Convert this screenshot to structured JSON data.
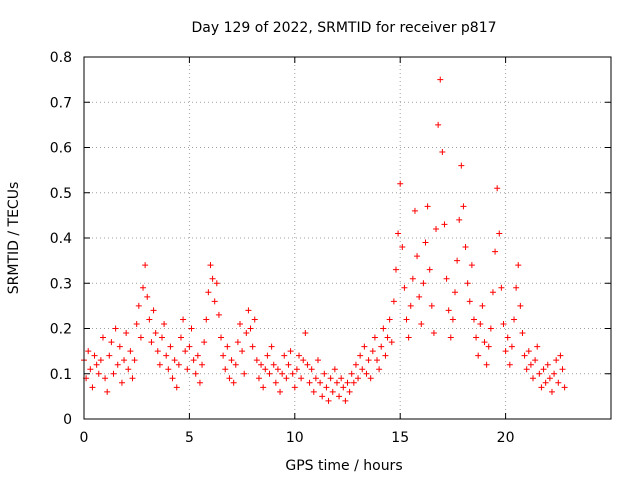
{
  "chart_data": {
    "type": "scatter",
    "title": "Day 129 of 2022, SRMTID for receiver p817",
    "xlabel": "GPS time / hours",
    "ylabel": "SRMTID / TECUs",
    "xlim": [
      0,
      25
    ],
    "ylim": [
      0,
      0.8
    ],
    "grid": true,
    "legend": "none",
    "marker": "plus",
    "color": "#ff0000",
    "x_ticks": [
      {
        "value": 0,
        "label": "0"
      },
      {
        "value": 5,
        "label": "5"
      },
      {
        "value": 10,
        "label": "10"
      },
      {
        "value": 15,
        "label": "15"
      },
      {
        "value": 20,
        "label": "20"
      }
    ],
    "y_ticks": [
      {
        "value": 0,
        "label": "0"
      },
      {
        "value": 0.1,
        "label": "0.1"
      },
      {
        "value": 0.2,
        "label": "0.2"
      },
      {
        "value": 0.3,
        "label": "0.3"
      },
      {
        "value": 0.4,
        "label": "0.4"
      },
      {
        "value": 0.5,
        "label": "0.5"
      },
      {
        "value": 0.6,
        "label": "0.6"
      },
      {
        "value": 0.7,
        "label": "0.7"
      },
      {
        "value": 0.8,
        "label": "0.8"
      }
    ],
    "series": [
      {
        "name": "SRMTID p817",
        "points": [
          [
            0.0,
            0.13
          ],
          [
            0.1,
            0.09
          ],
          [
            0.2,
            0.15
          ],
          [
            0.3,
            0.11
          ],
          [
            0.4,
            0.07
          ],
          [
            0.5,
            0.14
          ],
          [
            0.6,
            0.12
          ],
          [
            0.7,
            0.1
          ],
          [
            0.8,
            0.13
          ],
          [
            0.9,
            0.18
          ],
          [
            1.0,
            0.09
          ],
          [
            1.1,
            0.06
          ],
          [
            1.2,
            0.14
          ],
          [
            1.3,
            0.17
          ],
          [
            1.4,
            0.1
          ],
          [
            1.5,
            0.2
          ],
          [
            1.6,
            0.12
          ],
          [
            1.7,
            0.16
          ],
          [
            1.8,
            0.08
          ],
          [
            1.9,
            0.13
          ],
          [
            2.0,
            0.19
          ],
          [
            2.1,
            0.11
          ],
          [
            2.2,
            0.15
          ],
          [
            2.3,
            0.09
          ],
          [
            2.4,
            0.13
          ],
          [
            2.5,
            0.21
          ],
          [
            2.6,
            0.25
          ],
          [
            2.7,
            0.18
          ],
          [
            2.8,
            0.29
          ],
          [
            2.9,
            0.34
          ],
          [
            3.0,
            0.27
          ],
          [
            3.1,
            0.22
          ],
          [
            3.2,
            0.17
          ],
          [
            3.3,
            0.24
          ],
          [
            3.4,
            0.19
          ],
          [
            3.5,
            0.15
          ],
          [
            3.6,
            0.12
          ],
          [
            3.7,
            0.18
          ],
          [
            3.8,
            0.21
          ],
          [
            3.9,
            0.14
          ],
          [
            4.0,
            0.11
          ],
          [
            4.1,
            0.16
          ],
          [
            4.2,
            0.09
          ],
          [
            4.3,
            0.13
          ],
          [
            4.4,
            0.07
          ],
          [
            4.5,
            0.12
          ],
          [
            4.6,
            0.18
          ],
          [
            4.7,
            0.22
          ],
          [
            4.8,
            0.15
          ],
          [
            4.9,
            0.11
          ],
          [
            5.0,
            0.16
          ],
          [
            5.1,
            0.2
          ],
          [
            5.2,
            0.13
          ],
          [
            5.3,
            0.1
          ],
          [
            5.4,
            0.14
          ],
          [
            5.5,
            0.08
          ],
          [
            5.6,
            0.12
          ],
          [
            5.7,
            0.17
          ],
          [
            5.8,
            0.22
          ],
          [
            5.9,
            0.28
          ],
          [
            6.0,
            0.34
          ],
          [
            6.1,
            0.31
          ],
          [
            6.2,
            0.26
          ],
          [
            6.3,
            0.3
          ],
          [
            6.4,
            0.23
          ],
          [
            6.5,
            0.18
          ],
          [
            6.6,
            0.14
          ],
          [
            6.7,
            0.11
          ],
          [
            6.8,
            0.16
          ],
          [
            6.9,
            0.09
          ],
          [
            7.0,
            0.13
          ],
          [
            7.1,
            0.08
          ],
          [
            7.2,
            0.12
          ],
          [
            7.3,
            0.17
          ],
          [
            7.4,
            0.21
          ],
          [
            7.5,
            0.15
          ],
          [
            7.6,
            0.1
          ],
          [
            7.7,
            0.19
          ],
          [
            7.8,
            0.24
          ],
          [
            7.9,
            0.2
          ],
          [
            8.0,
            0.16
          ],
          [
            8.1,
            0.22
          ],
          [
            8.2,
            0.13
          ],
          [
            8.3,
            0.09
          ],
          [
            8.4,
            0.12
          ],
          [
            8.5,
            0.07
          ],
          [
            8.6,
            0.11
          ],
          [
            8.7,
            0.14
          ],
          [
            8.8,
            0.1
          ],
          [
            8.9,
            0.16
          ],
          [
            9.0,
            0.12
          ],
          [
            9.1,
            0.08
          ],
          [
            9.2,
            0.11
          ],
          [
            9.3,
            0.06
          ],
          [
            9.4,
            0.1
          ],
          [
            9.5,
            0.14
          ],
          [
            9.6,
            0.09
          ],
          [
            9.7,
            0.12
          ],
          [
            9.8,
            0.15
          ],
          [
            9.9,
            0.1
          ],
          [
            10.0,
            0.07
          ],
          [
            10.1,
            0.11
          ],
          [
            10.2,
            0.14
          ],
          [
            10.3,
            0.09
          ],
          [
            10.4,
            0.13
          ],
          [
            10.5,
            0.19
          ],
          [
            10.6,
            0.12
          ],
          [
            10.7,
            0.08
          ],
          [
            10.8,
            0.11
          ],
          [
            10.9,
            0.06
          ],
          [
            11.0,
            0.09
          ],
          [
            11.1,
            0.13
          ],
          [
            11.2,
            0.08
          ],
          [
            11.3,
            0.05
          ],
          [
            11.4,
            0.1
          ],
          [
            11.5,
            0.07
          ],
          [
            11.6,
            0.04
          ],
          [
            11.7,
            0.09
          ],
          [
            11.8,
            0.06
          ],
          [
            11.9,
            0.11
          ],
          [
            12.0,
            0.08
          ],
          [
            12.1,
            0.05
          ],
          [
            12.2,
            0.09
          ],
          [
            12.3,
            0.07
          ],
          [
            12.4,
            0.04
          ],
          [
            12.5,
            0.08
          ],
          [
            12.6,
            0.06
          ],
          [
            12.7,
            0.1
          ],
          [
            12.8,
            0.08
          ],
          [
            12.9,
            0.12
          ],
          [
            13.0,
            0.09
          ],
          [
            13.1,
            0.14
          ],
          [
            13.2,
            0.11
          ],
          [
            13.3,
            0.16
          ],
          [
            13.4,
            0.1
          ],
          [
            13.5,
            0.13
          ],
          [
            13.6,
            0.09
          ],
          [
            13.7,
            0.15
          ],
          [
            13.8,
            0.18
          ],
          [
            13.9,
            0.13
          ],
          [
            14.0,
            0.11
          ],
          [
            14.1,
            0.16
          ],
          [
            14.2,
            0.2
          ],
          [
            14.3,
            0.14
          ],
          [
            14.4,
            0.18
          ],
          [
            14.5,
            0.22
          ],
          [
            14.6,
            0.17
          ],
          [
            14.7,
            0.26
          ],
          [
            14.8,
            0.33
          ],
          [
            14.9,
            0.41
          ],
          [
            15.0,
            0.52
          ],
          [
            15.1,
            0.38
          ],
          [
            15.2,
            0.29
          ],
          [
            15.3,
            0.22
          ],
          [
            15.4,
            0.18
          ],
          [
            15.5,
            0.25
          ],
          [
            15.6,
            0.31
          ],
          [
            15.7,
            0.46
          ],
          [
            15.8,
            0.36
          ],
          [
            15.9,
            0.27
          ],
          [
            16.0,
            0.21
          ],
          [
            16.1,
            0.3
          ],
          [
            16.2,
            0.39
          ],
          [
            16.3,
            0.47
          ],
          [
            16.4,
            0.33
          ],
          [
            16.5,
            0.25
          ],
          [
            16.6,
            0.19
          ],
          [
            16.7,
            0.42
          ],
          [
            16.8,
            0.65
          ],
          [
            16.9,
            0.75
          ],
          [
            17.0,
            0.59
          ],
          [
            17.1,
            0.43
          ],
          [
            17.2,
            0.31
          ],
          [
            17.3,
            0.24
          ],
          [
            17.4,
            0.18
          ],
          [
            17.5,
            0.22
          ],
          [
            17.6,
            0.28
          ],
          [
            17.7,
            0.35
          ],
          [
            17.8,
            0.44
          ],
          [
            17.9,
            0.56
          ],
          [
            18.0,
            0.47
          ],
          [
            18.1,
            0.38
          ],
          [
            18.2,
            0.3
          ],
          [
            18.3,
            0.26
          ],
          [
            18.4,
            0.34
          ],
          [
            18.5,
            0.22
          ],
          [
            18.6,
            0.18
          ],
          [
            18.7,
            0.14
          ],
          [
            18.8,
            0.21
          ],
          [
            18.9,
            0.25
          ],
          [
            19.0,
            0.17
          ],
          [
            19.1,
            0.12
          ],
          [
            19.2,
            0.16
          ],
          [
            19.3,
            0.2
          ],
          [
            19.4,
            0.28
          ],
          [
            19.5,
            0.37
          ],
          [
            19.6,
            0.51
          ],
          [
            19.7,
            0.41
          ],
          [
            19.8,
            0.29
          ],
          [
            19.9,
            0.21
          ],
          [
            20.0,
            0.15
          ],
          [
            20.1,
            0.18
          ],
          [
            20.2,
            0.12
          ],
          [
            20.3,
            0.16
          ],
          [
            20.4,
            0.22
          ],
          [
            20.5,
            0.29
          ],
          [
            20.6,
            0.34
          ],
          [
            20.7,
            0.25
          ],
          [
            20.8,
            0.19
          ],
          [
            20.9,
            0.14
          ],
          [
            21.0,
            0.11
          ],
          [
            21.1,
            0.15
          ],
          [
            21.2,
            0.12
          ],
          [
            21.3,
            0.09
          ],
          [
            21.4,
            0.13
          ],
          [
            21.5,
            0.16
          ],
          [
            21.6,
            0.1
          ],
          [
            21.7,
            0.07
          ],
          [
            21.8,
            0.11
          ],
          [
            21.9,
            0.08
          ],
          [
            22.0,
            0.12
          ],
          [
            22.1,
            0.09
          ],
          [
            22.2,
            0.06
          ],
          [
            22.3,
            0.1
          ],
          [
            22.4,
            0.13
          ],
          [
            22.5,
            0.08
          ],
          [
            22.6,
            0.14
          ],
          [
            22.7,
            0.11
          ],
          [
            22.8,
            0.07
          ]
        ]
      }
    ]
  }
}
